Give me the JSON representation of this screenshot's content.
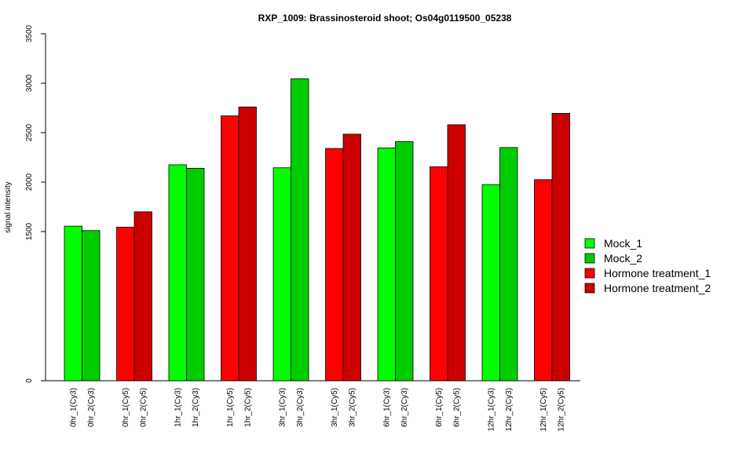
{
  "chart_data": {
    "type": "bar",
    "title": "RXP_1009: Brassinosteroid shoot; Os04g0119500_05238",
    "xlabel": "",
    "ylabel": "signal intensity",
    "ylim": [
      0,
      3500
    ],
    "y_axis_break": true,
    "y_ticks": [
      0,
      1500,
      2000,
      2500,
      3000,
      3500
    ],
    "grid": false,
    "legend_position": "right",
    "series": [
      {
        "name": "Mock_1",
        "color": "#00ff00"
      },
      {
        "name": "Mock_2",
        "color": "#00cc00"
      },
      {
        "name": "Hormone treatment_1",
        "color": "#ff0000"
      },
      {
        "name": "Hormone treatment_2",
        "color": "#cc0000"
      }
    ],
    "bars": [
      {
        "label": "0hr_1(Cy3)",
        "value": 1555,
        "series": "Mock_1"
      },
      {
        "label": "0hr_2(Cy3)",
        "value": 1510,
        "series": "Mock_2"
      },
      {
        "label": "0hr_1(Cy5)",
        "value": 1545,
        "series": "Hormone treatment_1"
      },
      {
        "label": "0hr_2(Cy5)",
        "value": 1700,
        "series": "Hormone treatment_2"
      },
      {
        "label": "1hr_1(Cy3)",
        "value": 2175,
        "series": "Mock_1"
      },
      {
        "label": "1hr_2(Cy3)",
        "value": 2140,
        "series": "Mock_2"
      },
      {
        "label": "1hr_1(Cy5)",
        "value": 2670,
        "series": "Hormone treatment_1"
      },
      {
        "label": "1hr_2(Cy5)",
        "value": 2760,
        "series": "Hormone treatment_2"
      },
      {
        "label": "3hr_1(Cy3)",
        "value": 2145,
        "series": "Mock_1"
      },
      {
        "label": "3hr_2(Cy3)",
        "value": 3045,
        "series": "Mock_2"
      },
      {
        "label": "3hr_1(Cy5)",
        "value": 2340,
        "series": "Hormone treatment_1"
      },
      {
        "label": "3hr_2(Cy5)",
        "value": 2485,
        "series": "Hormone treatment_2"
      },
      {
        "label": "6hr_1(Cy3)",
        "value": 2345,
        "series": "Mock_1"
      },
      {
        "label": "6hr_2(Cy3)",
        "value": 2410,
        "series": "Mock_2"
      },
      {
        "label": "6hr_1(Cy5)",
        "value": 2155,
        "series": "Hormone treatment_1"
      },
      {
        "label": "6hr_2(Cy5)",
        "value": 2580,
        "series": "Hormone treatment_2"
      },
      {
        "label": "12hr_1(Cy3)",
        "value": 1975,
        "series": "Mock_1"
      },
      {
        "label": "12hr_2(Cy3)",
        "value": 2350,
        "series": "Mock_2"
      },
      {
        "label": "12hr_1(Cy5)",
        "value": 2025,
        "series": "Hormone treatment_1"
      },
      {
        "label": "12hr_2(Cy5)",
        "value": 2695,
        "series": "Hormone treatment_2"
      }
    ]
  }
}
